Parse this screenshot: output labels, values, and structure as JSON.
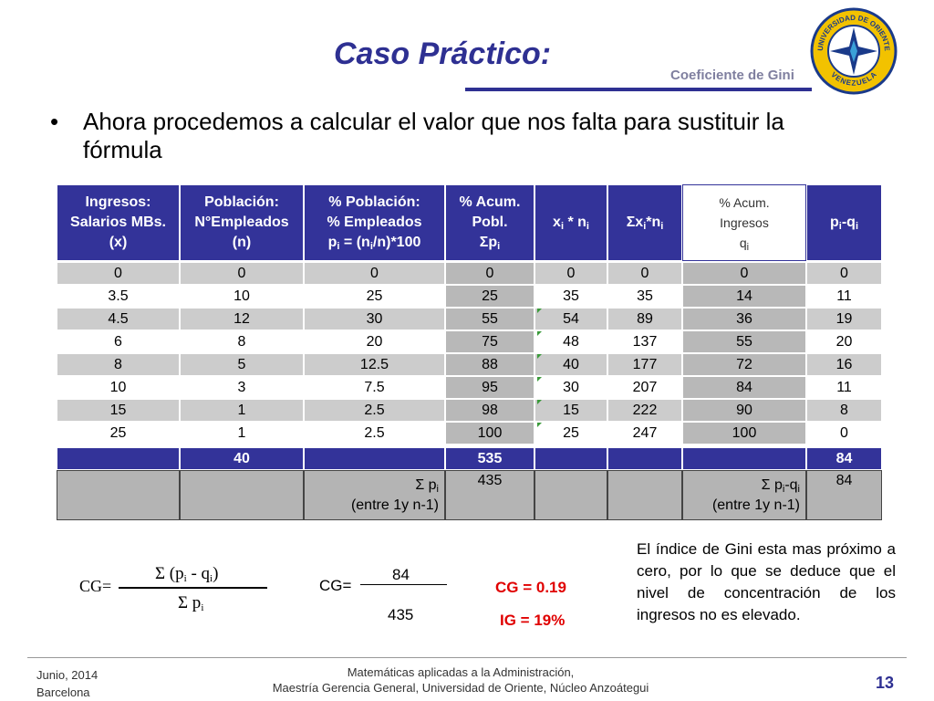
{
  "header": {
    "title": "Caso Práctico:",
    "subtitle": "Coeficiente de Gini"
  },
  "logo": {
    "top": "UNIVERSIDAD DE ORIENTE",
    "bottom": "VENEZUELA"
  },
  "bullet": "Ahora procedemos a calcular el valor que nos falta para sustituir la fórmula",
  "table": {
    "headers": [
      [
        [
          "Ingresos:"
        ],
        [
          "Salarios MBs."
        ],
        [
          "(x)"
        ]
      ],
      [
        [
          "Población:"
        ],
        [
          "N°Empleados"
        ],
        [
          "(n)"
        ]
      ],
      [
        [
          "% Población:"
        ],
        [
          "% Empleados"
        ],
        [
          "p",
          "i",
          " = (n",
          "i",
          "/n)*100"
        ]
      ],
      [
        [
          "% Acum."
        ],
        [
          "Pobl."
        ],
        [
          "Σp",
          "i"
        ]
      ],
      [
        [
          "x",
          "i",
          " * n",
          "i"
        ]
      ],
      [
        [
          "Σx",
          "i",
          "*n",
          "i"
        ]
      ],
      [
        [
          "% Acum."
        ],
        [
          "Ingresos"
        ],
        [
          "q",
          "i"
        ]
      ],
      [
        [
          "p",
          "i",
          "-q",
          "i"
        ]
      ]
    ],
    "rows": [
      [
        0,
        0,
        0,
        0,
        0,
        0,
        0,
        0
      ],
      [
        3.5,
        10,
        25,
        25,
        35,
        35,
        14,
        11
      ],
      [
        4.5,
        12,
        30,
        55,
        54,
        89,
        36,
        19
      ],
      [
        6,
        8,
        20,
        75,
        48,
        137,
        55,
        20
      ],
      [
        8,
        5,
        12.5,
        88,
        40,
        177,
        72,
        16
      ],
      [
        10,
        3,
        7.5,
        95,
        30,
        207,
        84,
        11
      ],
      [
        15,
        1,
        2.5,
        98,
        15,
        222,
        90,
        8
      ],
      [
        25,
        1,
        2.5,
        100,
        25,
        247,
        100,
        0
      ]
    ],
    "totals": [
      null,
      40,
      null,
      535,
      null,
      null,
      null,
      84
    ],
    "sums": [
      null,
      null,
      [
        [
          "Σ  p",
          "i"
        ],
        [
          "(entre 1y n-1)"
        ]
      ],
      435,
      null,
      null,
      [
        [
          "Σ  p",
          "i",
          "-q",
          "i"
        ],
        [
          "(entre 1y n-1)"
        ]
      ],
      84
    ]
  },
  "formula": {
    "lhs": "CG",
    "eq": "=",
    "numerator": [
      "Σ (p",
      "i",
      " - q",
      "i",
      ")"
    ],
    "denominator": [
      "Σ p",
      "i"
    ]
  },
  "substitution": {
    "lhs": "CG=",
    "numerator": 84,
    "denominator": 435
  },
  "results": {
    "cg": "CG = 0.19",
    "ig": "IG = 19%"
  },
  "note": "El índice de Gini esta mas próximo a cero,  por lo que se deduce que el nivel de concentración de los ingresos no es elevado.",
  "footer": {
    "date": "Junio, 2014",
    "place": "Barcelona",
    "line1": "Matemáticas aplicadas a la Administración,",
    "line2": "Maestría Gerencia General, Universidad de Oriente, Núcleo Anzoátegui",
    "page": "13"
  }
}
